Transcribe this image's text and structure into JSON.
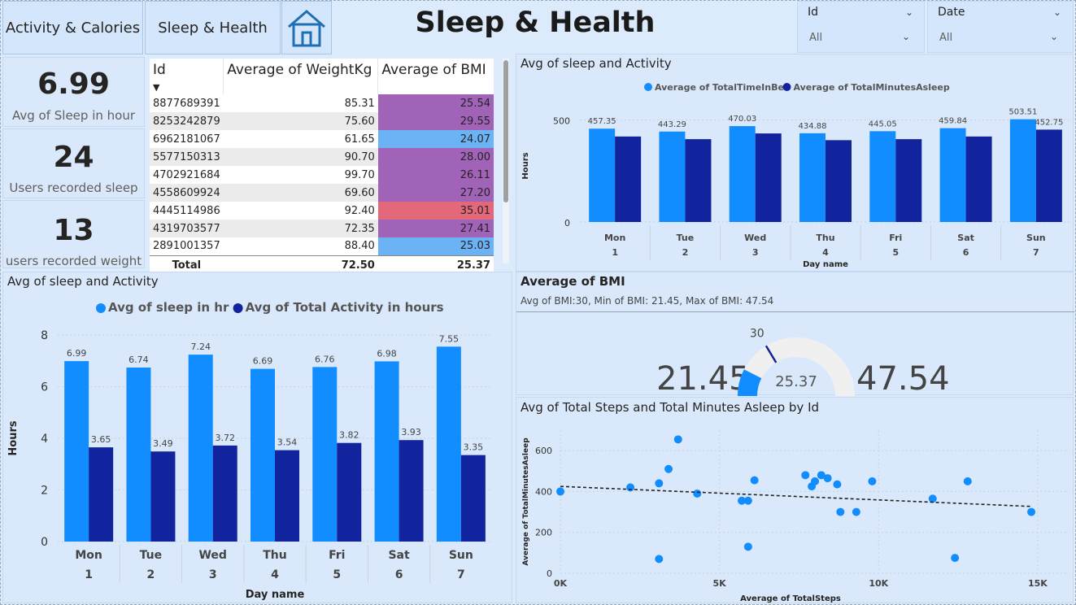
{
  "nav": {
    "activity_label": "Activity & Calories",
    "sleep_label": "Sleep & Health"
  },
  "header": {
    "title": "Sleep & Health"
  },
  "filters": {
    "id": {
      "label": "Id",
      "value": "All"
    },
    "date": {
      "label": "Date",
      "value": "All"
    }
  },
  "kpis": [
    {
      "value": "6.99",
      "label": "Avg of Sleep in hour"
    },
    {
      "value": "24",
      "label": "Users recorded sleep"
    },
    {
      "value": "13",
      "label": "users recorded weight"
    }
  ],
  "bmi_table": {
    "columns": [
      "Id",
      "Average of WeightKg",
      "Average of BMI"
    ],
    "rows": [
      {
        "id": "8877689391",
        "weight": "85.31",
        "bmi": "25.54",
        "color": "#a163b8"
      },
      {
        "id": "8253242879",
        "weight": "75.60",
        "bmi": "29.55",
        "color": "#a163b8"
      },
      {
        "id": "6962181067",
        "weight": "61.65",
        "bmi": "24.07",
        "color": "#6cb3f5"
      },
      {
        "id": "5577150313",
        "weight": "90.70",
        "bmi": "28.00",
        "color": "#a163b8"
      },
      {
        "id": "4702921684",
        "weight": "99.70",
        "bmi": "26.11",
        "color": "#a163b8"
      },
      {
        "id": "4558609924",
        "weight": "69.60",
        "bmi": "27.20",
        "color": "#a163b8"
      },
      {
        "id": "4445114986",
        "weight": "92.40",
        "bmi": "35.01",
        "color": "#e3687a"
      },
      {
        "id": "4319703577",
        "weight": "72.35",
        "bmi": "27.41",
        "color": "#a163b8"
      },
      {
        "id": "2891001357",
        "weight": "88.40",
        "bmi": "25.03",
        "color": "#6cb3f5"
      }
    ],
    "total": {
      "label": "Total",
      "weight": "72.50",
      "bmi": "25.37"
    }
  },
  "gauge": {
    "title": "Average of BMI",
    "subtitle": "Avg of BMI:30, Min of BMI: 21.45, Max of BMI: 47.54",
    "min": 21.45,
    "max": 47.54,
    "value": 25.37,
    "target": 30,
    "min_label": "21.45",
    "max_label": "47.54",
    "value_label": "25.37",
    "target_label": "30"
  },
  "colors": {
    "series_light": "#118dff",
    "series_dark": "#12239e",
    "gauge_bg": "#f0f0f0"
  },
  "chart_data": [
    {
      "type": "bar",
      "title": "Avg of sleep and Activity",
      "xlabel": "Day name",
      "ylabel": "Hours",
      "categories": [
        "Mon",
        "Tue",
        "Wed",
        "Thu",
        "Fri",
        "Sat",
        "Sun"
      ],
      "category_numbers": [
        "1",
        "2",
        "3",
        "4",
        "5",
        "6",
        "7"
      ],
      "ylim": [
        0,
        550
      ],
      "yticks": [
        0,
        500
      ],
      "legend_position": "top",
      "series": [
        {
          "name": "Average of TotalTimeInBed",
          "values": [
            457.35,
            443.29,
            470.03,
            434.88,
            445.05,
            459.84,
            503.51
          ],
          "labels": [
            "457.35",
            "443.29",
            "470.03",
            "434.88",
            "445.05",
            "459.84",
            "503.51"
          ]
        },
        {
          "name": "Average of TotalMinutesAsleep",
          "values": [
            419,
            406,
            434,
            401,
            406,
            419,
            452.75
          ],
          "labels": [
            "",
            "",
            "",
            "",
            "",
            "",
            "452.75"
          ]
        }
      ]
    },
    {
      "type": "bar",
      "title": "Avg of sleep and Activity",
      "xlabel": "Day name",
      "ylabel": "Hours",
      "categories": [
        "Mon",
        "Tue",
        "Wed",
        "Thu",
        "Fri",
        "Sat",
        "Sun"
      ],
      "category_numbers": [
        "1",
        "2",
        "3",
        "4",
        "5",
        "6",
        "7"
      ],
      "ylim": [
        0,
        8
      ],
      "yticks": [
        0,
        2,
        4,
        6,
        8
      ],
      "legend_position": "top",
      "series": [
        {
          "name": "Avg of sleep in hr",
          "values": [
            6.99,
            6.74,
            7.24,
            6.69,
            6.76,
            6.98,
            7.55
          ],
          "labels": [
            "6.99",
            "6.74",
            "7.24",
            "6.69",
            "6.76",
            "6.98",
            "7.55"
          ]
        },
        {
          "name": "Avg of Total Activity in hours",
          "values": [
            3.65,
            3.49,
            3.72,
            3.54,
            3.82,
            3.93,
            3.35
          ],
          "labels": [
            "3.65",
            "3.49",
            "3.72",
            "3.54",
            "3.82",
            "3.93",
            "3.35"
          ]
        }
      ]
    },
    {
      "type": "scatter",
      "title": "Avg of Total Steps and Total Minutes Asleep by Id",
      "xlabel": "Average of TotalSteps",
      "ylabel": "Average of TotalMinutesAsleep",
      "xlim": [
        0,
        16000
      ],
      "ylim": [
        0,
        700
      ],
      "xticks": [
        0,
        5000,
        10000,
        15000
      ],
      "xtick_labels": [
        "0K",
        "5K",
        "10K",
        "15K"
      ],
      "yticks": [
        0,
        200,
        400,
        600
      ],
      "trendline": [
        [
          0,
          425
        ],
        [
          14800,
          327
        ]
      ],
      "points": [
        [
          0,
          400
        ],
        [
          2200,
          420
        ],
        [
          3100,
          440
        ],
        [
          3100,
          70
        ],
        [
          3400,
          510
        ],
        [
          3700,
          655
        ],
        [
          4300,
          390
        ],
        [
          5700,
          355
        ],
        [
          5900,
          355
        ],
        [
          5900,
          130
        ],
        [
          6100,
          455
        ],
        [
          7700,
          480
        ],
        [
          7900,
          425
        ],
        [
          8000,
          450
        ],
        [
          8200,
          480
        ],
        [
          8400,
          465
        ],
        [
          8700,
          435
        ],
        [
          8800,
          300
        ],
        [
          9300,
          300
        ],
        [
          9800,
          450
        ],
        [
          11700,
          365
        ],
        [
          12400,
          75
        ],
        [
          12800,
          450
        ],
        [
          14800,
          300
        ]
      ]
    }
  ]
}
